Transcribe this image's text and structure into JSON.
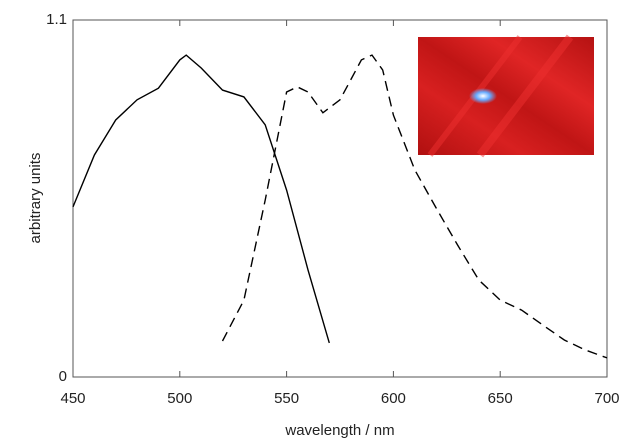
{
  "chart_data": {
    "type": "line",
    "x_label": "wavelength / nm",
    "y_label": "arbitrary units",
    "xlim": [
      450,
      700
    ],
    "xticks": [
      450,
      500,
      550,
      600,
      650,
      700
    ],
    "ylim": [
      0,
      1.1
    ],
    "yticks": [
      0,
      1.1
    ],
    "series": [
      {
        "style": "solid",
        "color": "#000000",
        "x": [
          450,
          460,
          470,
          480,
          490,
          500,
          503,
          510,
          520,
          530,
          540,
          550,
          560,
          570
        ],
        "values": [
          0.524,
          0.684,
          0.792,
          0.854,
          0.89,
          0.977,
          0.992,
          0.952,
          0.884,
          0.863,
          0.777,
          0.576,
          0.33,
          0.105
        ]
      },
      {
        "style": "dashed",
        "color": "#000000",
        "x": [
          520,
          530,
          540,
          550,
          555,
          560,
          567,
          575,
          585,
          590,
          595,
          600,
          610,
          620,
          630,
          640,
          650,
          660,
          670,
          680,
          690,
          700
        ],
        "values": [
          0.111,
          0.237,
          0.545,
          0.878,
          0.894,
          0.878,
          0.814,
          0.854,
          0.977,
          0.992,
          0.946,
          0.807,
          0.638,
          0.521,
          0.407,
          0.299,
          0.237,
          0.206,
          0.16,
          0.114,
          0.083,
          0.059
        ]
      }
    ]
  }
}
